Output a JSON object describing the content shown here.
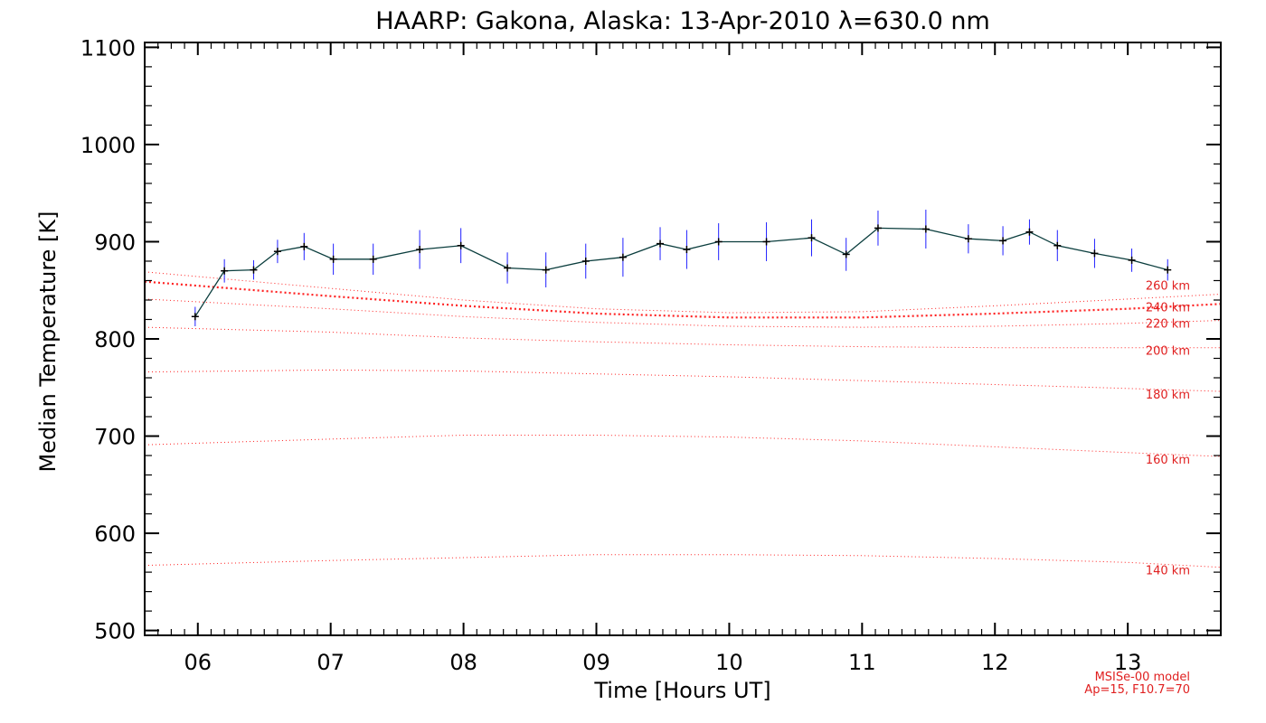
{
  "chart_data": {
    "type": "line",
    "title": "HAARP: Gakona,  Alaska: 13-Apr-2010 λ=630.0 nm",
    "xlabel": "Time [Hours UT]",
    "ylabel": "Median Temperature [K]",
    "xlim": [
      5.6,
      13.7
    ],
    "ylim": [
      495,
      1105
    ],
    "xticks": [
      6,
      7,
      8,
      9,
      10,
      11,
      12,
      13
    ],
    "xtick_labels": [
      "06",
      "07",
      "08",
      "09",
      "10",
      "11",
      "12",
      "13"
    ],
    "yticks": [
      500,
      600,
      700,
      800,
      900,
      1000,
      1100
    ],
    "ytick_labels": [
      "500",
      "600",
      "700",
      "800",
      "900",
      "1000",
      "1100"
    ],
    "grid": false,
    "colors": {
      "measured_line": "#0a3d3d",
      "error_bars": "#2020ff",
      "model": "#ff2020",
      "model_label": "#e02020"
    },
    "series": [
      {
        "x": [
          5.98,
          6.2,
          6.42,
          6.6,
          6.8,
          7.02,
          7.32,
          7.67,
          7.98,
          8.33,
          8.62,
          8.92,
          9.2,
          9.48,
          9.68,
          9.92,
          10.28,
          10.62,
          10.88,
          11.12,
          11.48,
          11.8,
          12.06,
          12.26,
          12.47,
          12.75,
          13.03,
          13.3
        ],
        "values": [
          823,
          870,
          871,
          890,
          895,
          882,
          882,
          892,
          896,
          873,
          871,
          880,
          884,
          898,
          892,
          900,
          900,
          904,
          887,
          914,
          913,
          903,
          901,
          910,
          896,
          888,
          881,
          871
        ],
        "errors": [
          10,
          12,
          10,
          12,
          14,
          16,
          16,
          20,
          18,
          16,
          18,
          18,
          20,
          17,
          20,
          19,
          20,
          19,
          17,
          18,
          20,
          15,
          15,
          13,
          16,
          15,
          12,
          11
        ]
      }
    ],
    "model_curves": [
      {
        "label": "140 km",
        "x": [
          5.6,
          7.0,
          8.0,
          9.0,
          10.0,
          11.0,
          12.0,
          13.0,
          13.7
        ],
        "values": [
          567,
          572,
          575,
          578,
          578,
          577,
          574,
          570,
          565
        ]
      },
      {
        "label": "160 km",
        "x": [
          5.6,
          7.0,
          8.0,
          9.0,
          10.0,
          11.0,
          12.0,
          13.0,
          13.7
        ],
        "values": [
          691,
          697,
          701,
          701,
          699,
          695,
          689,
          683,
          679
        ]
      },
      {
        "label": "180 km",
        "x": [
          5.6,
          7.0,
          8.0,
          9.0,
          10.0,
          11.0,
          12.0,
          13.0,
          13.7
        ],
        "values": [
          766,
          768,
          767,
          764,
          761,
          757,
          753,
          749,
          746
        ]
      },
      {
        "label": "200 km",
        "x": [
          5.6,
          7.0,
          8.0,
          9.0,
          10.0,
          11.0,
          12.0,
          13.0,
          13.7
        ],
        "values": [
          812,
          807,
          801,
          797,
          794,
          792,
          791,
          791,
          791
        ]
      },
      {
        "label": "220 km",
        "x": [
          5.6,
          7.0,
          8.0,
          9.0,
          10.0,
          11.0,
          12.0,
          13.0,
          13.7
        ],
        "values": [
          841,
          831,
          823,
          817,
          813,
          812,
          813,
          816,
          819
        ]
      },
      {
        "label": "240 km",
        "x": [
          5.6,
          7.0,
          8.0,
          9.0,
          10.0,
          11.0,
          12.0,
          13.0,
          13.7
        ],
        "values": [
          859,
          844,
          834,
          826,
          822,
          822,
          826,
          831,
          836
        ]
      },
      {
        "label": "260 km",
        "x": [
          5.6,
          7.0,
          8.0,
          9.0,
          10.0,
          11.0,
          12.0,
          13.0,
          13.7
        ],
        "values": [
          869,
          852,
          840,
          831,
          827,
          828,
          834,
          841,
          846
        ]
      }
    ],
    "model_note": [
      "MSISe-00 model",
      "Ap=15, F10.7=70"
    ]
  }
}
